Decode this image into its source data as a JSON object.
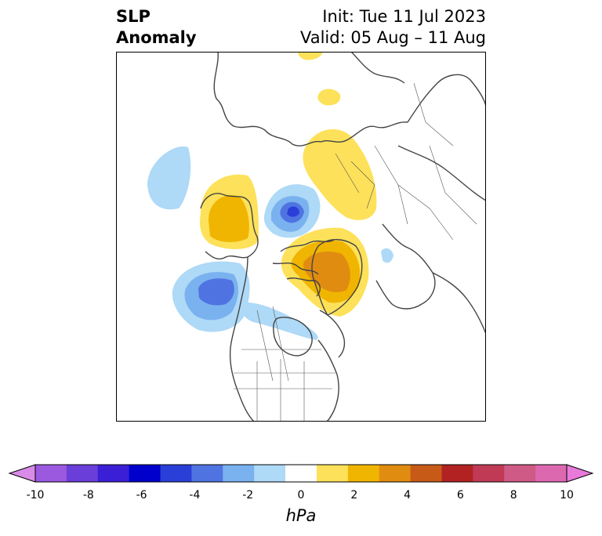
{
  "title": {
    "left_line1": "SLP",
    "left_line2": "Anomaly",
    "init": "Init: Tue 11 Jul 2023",
    "valid": "Valid: 05 Aug – 11 Aug"
  },
  "colorbar": {
    "units": "hPa",
    "tick_labels": [
      "-10",
      "-8",
      "-6",
      "-4",
      "-2",
      "0",
      "2",
      "4",
      "6",
      "8",
      "10"
    ],
    "colors": [
      "#d98be8",
      "#9b59e0",
      "#6a3ed8",
      "#3b1fd6",
      "#0000cc",
      "#2a3fd8",
      "#4f74e2",
      "#7ab2ef",
      "#aed9f7",
      "#ffffff",
      "#fde15a",
      "#f0b500",
      "#e08c10",
      "#c85a18",
      "#b22222",
      "#c03a55",
      "#cf5a85",
      "#dc69b0",
      "#e87ad9"
    ]
  },
  "map": {
    "anomaly_colors": {
      "light_blue": "#aed9f7",
      "mid_blue": "#7ab2ef",
      "blue": "#4f74e2",
      "dark_blue": "#2a3fd8",
      "light_yellow": "#fde15a",
      "yellow": "#f0b500",
      "orange": "#e08c10"
    }
  }
}
